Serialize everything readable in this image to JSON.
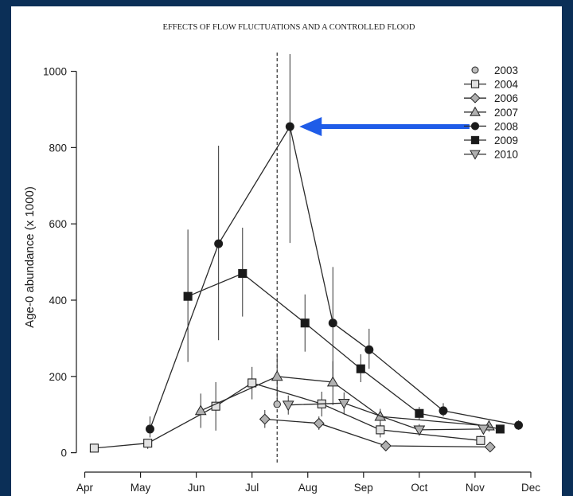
{
  "chart_data": {
    "type": "line",
    "title": "EFFECTS OF FLOW FLUCTUATIONS AND A CONTROLLED FLOOD",
    "ylabel": "Age-0 abundance (x 1000)",
    "xlabel": "",
    "x_ticks": [
      "Apr",
      "May",
      "Jun",
      "Jul",
      "Aug",
      "Sep",
      "Oct",
      "Nov",
      "Dec"
    ],
    "y_ticks": [
      0,
      200,
      400,
      600,
      800,
      1000
    ],
    "xlim": [
      3.85,
      12.3
    ],
    "ylim": [
      -30,
      1045
    ],
    "flood_marker_month": 7.45,
    "legend_position": "top-right",
    "series": [
      {
        "name": "2003",
        "marker": "circle",
        "fill": "#bdbdbd",
        "points": [
          {
            "x": 7.45,
            "y": 127,
            "lo": 127,
            "hi": 127
          }
        ]
      },
      {
        "name": "2004",
        "marker": "square",
        "fill": "#e2e2e2",
        "points": [
          {
            "x": 4.17,
            "y": 12,
            "lo": 12,
            "hi": 12
          },
          {
            "x": 5.13,
            "y": 25,
            "lo": 10,
            "hi": 35
          },
          {
            "x": 6.35,
            "y": 122,
            "lo": 58,
            "hi": 185
          },
          {
            "x": 7.0,
            "y": 183,
            "lo": 140,
            "hi": 225
          },
          {
            "x": 8.25,
            "y": 128,
            "lo": 95,
            "hi": 160
          },
          {
            "x": 9.3,
            "y": 60,
            "lo": 40,
            "hi": 78
          },
          {
            "x": 11.1,
            "y": 32,
            "lo": 22,
            "hi": 45
          }
        ]
      },
      {
        "name": "2006",
        "marker": "diamond",
        "fill": "#b0b0b0",
        "points": [
          {
            "x": 7.23,
            "y": 88,
            "lo": 65,
            "hi": 112
          },
          {
            "x": 8.2,
            "y": 77,
            "lo": 60,
            "hi": 95
          },
          {
            "x": 9.4,
            "y": 18,
            "lo": 12,
            "hi": 25
          },
          {
            "x": 11.27,
            "y": 15,
            "lo": 10,
            "hi": 20
          }
        ]
      },
      {
        "name": "2007",
        "marker": "triangle-up",
        "fill": "#b0b0b0",
        "points": [
          {
            "x": 6.08,
            "y": 110,
            "lo": 65,
            "hi": 155
          },
          {
            "x": 7.45,
            "y": 200,
            "lo": 140,
            "hi": 260
          },
          {
            "x": 8.45,
            "y": 185,
            "lo": 125,
            "hi": 240
          },
          {
            "x": 9.3,
            "y": 95,
            "lo": 70,
            "hi": 115
          },
          {
            "x": 11.25,
            "y": 70,
            "lo": 55,
            "hi": 82
          }
        ]
      },
      {
        "name": "2008",
        "marker": "circle",
        "fill": "#1a1a1a",
        "points": [
          {
            "x": 5.17,
            "y": 62,
            "lo": 40,
            "hi": 95
          },
          {
            "x": 6.4,
            "y": 548,
            "lo": 295,
            "hi": 805
          },
          {
            "x": 7.68,
            "y": 855,
            "lo": 550,
            "hi": 1045
          },
          {
            "x": 8.45,
            "y": 340,
            "lo": 195,
            "hi": 487
          },
          {
            "x": 9.1,
            "y": 270,
            "lo": 220,
            "hi": 325
          },
          {
            "x": 10.43,
            "y": 110,
            "lo": 95,
            "hi": 130
          },
          {
            "x": 11.78,
            "y": 72,
            "lo": 60,
            "hi": 85
          }
        ]
      },
      {
        "name": "2009",
        "marker": "square",
        "fill": "#1a1a1a",
        "points": [
          {
            "x": 5.85,
            "y": 410,
            "lo": 238,
            "hi": 585
          },
          {
            "x": 6.83,
            "y": 470,
            "lo": 357,
            "hi": 590
          },
          {
            "x": 7.95,
            "y": 340,
            "lo": 265,
            "hi": 415
          },
          {
            "x": 8.95,
            "y": 220,
            "lo": 185,
            "hi": 258
          },
          {
            "x": 10.0,
            "y": 103,
            "lo": 85,
            "hi": 120
          },
          {
            "x": 11.45,
            "y": 62,
            "lo": 55,
            "hi": 70
          }
        ]
      },
      {
        "name": "2010",
        "marker": "triangle-down",
        "fill": "#b0b0b0",
        "points": [
          {
            "x": 7.65,
            "y": 125,
            "lo": 100,
            "hi": 150
          },
          {
            "x": 8.65,
            "y": 130,
            "lo": 100,
            "hi": 158
          },
          {
            "x": 10.0,
            "y": 60,
            "lo": 45,
            "hi": 75
          },
          {
            "x": 11.15,
            "y": 62,
            "lo": 50,
            "hi": 72
          }
        ]
      }
    ],
    "annotation": {
      "type": "arrow",
      "color": "#1f5ce8",
      "from": {
        "x": 10.9,
        "y": 855
      },
      "to": {
        "x": 7.85,
        "y": 855
      }
    }
  }
}
